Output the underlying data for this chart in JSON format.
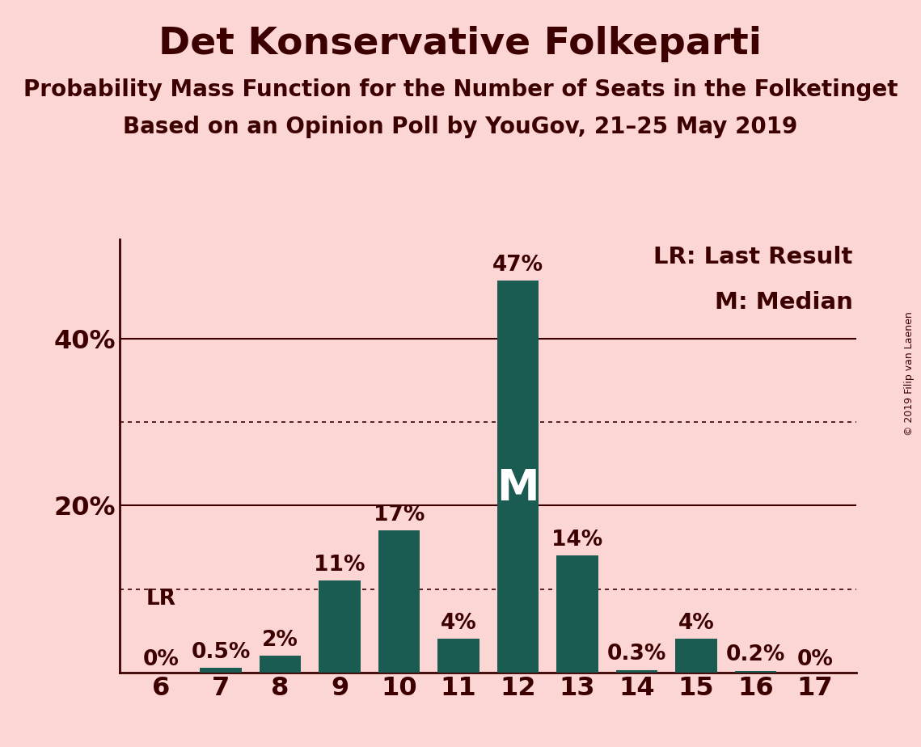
{
  "title": "Det Konservative Folkeparti",
  "subtitle1": "Probability Mass Function for the Number of Seats in the Folketinget",
  "subtitle2": "Based on an Opinion Poll by YouGov, 21–25 May 2019",
  "copyright": "© 2019 Filip van Laenen",
  "seats": [
    6,
    7,
    8,
    9,
    10,
    11,
    12,
    13,
    14,
    15,
    16,
    17
  ],
  "probabilities": [
    0.0,
    0.5,
    2.0,
    11.0,
    17.0,
    4.0,
    47.0,
    14.0,
    0.3,
    4.0,
    0.2,
    0.0
  ],
  "bar_labels": [
    "0%",
    "0.5%",
    "2%",
    "11%",
    "17%",
    "4%",
    "47%",
    "14%",
    "0.3%",
    "4%",
    "0.2%",
    "0%"
  ],
  "bar_color": "#1a5c52",
  "background_color": "#fcd5d5",
  "text_color": "#3d0000",
  "LR_seat": 6,
  "median_seat": 12,
  "ylim": [
    0,
    52
  ],
  "solid_yticks": [
    20,
    40
  ],
  "dotted_yticks": [
    10,
    30
  ],
  "legend_LR": "LR: Last Result",
  "legend_M": "M: Median",
  "title_fontsize": 34,
  "subtitle_fontsize": 20,
  "bar_label_fontsize": 19,
  "axis_fontsize": 23,
  "legend_fontsize": 21,
  "M_fontsize": 38,
  "LR_fontsize": 19,
  "copyright_fontsize": 9
}
